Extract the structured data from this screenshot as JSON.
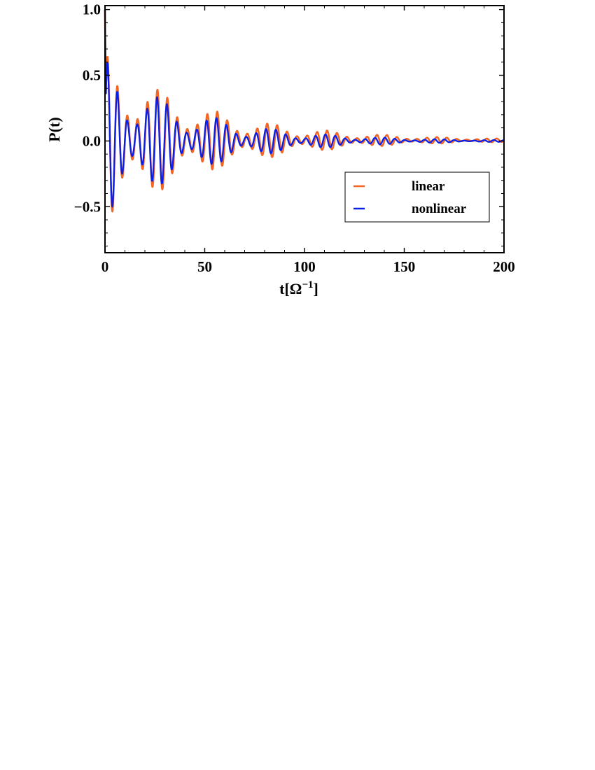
{
  "chart_data": {
    "type": "line",
    "title": "",
    "xlabel": "t[Ω",
    "xlabel_sup": "−1",
    "xlabel_close": "]",
    "ylabel": "P(t)",
    "xlim": [
      0,
      200
    ],
    "ylim": [
      -0.85,
      1.03
    ],
    "xticks": [
      0,
      50,
      100,
      150,
      200
    ],
    "xtick_labels": [
      "0",
      "50",
      "100",
      "150",
      "200"
    ],
    "yticks": [
      -0.5,
      0.0,
      0.5,
      1.0
    ],
    "ytick_labels": [
      "−0.5",
      "0.0",
      "0.5",
      "1.0"
    ],
    "grid": false,
    "legend_position": "right-middle",
    "series": [
      {
        "name": "linear",
        "color": "#f26522",
        "model": {
          "amplitude": 0.66,
          "decay_rate": 0.0196,
          "angular_frequency": 1.256,
          "phase": 1.5708,
          "beat_frequency": 0.225,
          "beat_depth": 0.55,
          "offset": 0.005
        }
      },
      {
        "name": "nonlinear",
        "color": "#0a1ee6",
        "model": {
          "amplitude": 0.62,
          "decay_rate": 0.0226,
          "angular_frequency": 1.265,
          "phase": 1.5708,
          "beat_frequency": 0.225,
          "beat_depth": 0.6,
          "offset": 0.0
        }
      }
    ]
  }
}
